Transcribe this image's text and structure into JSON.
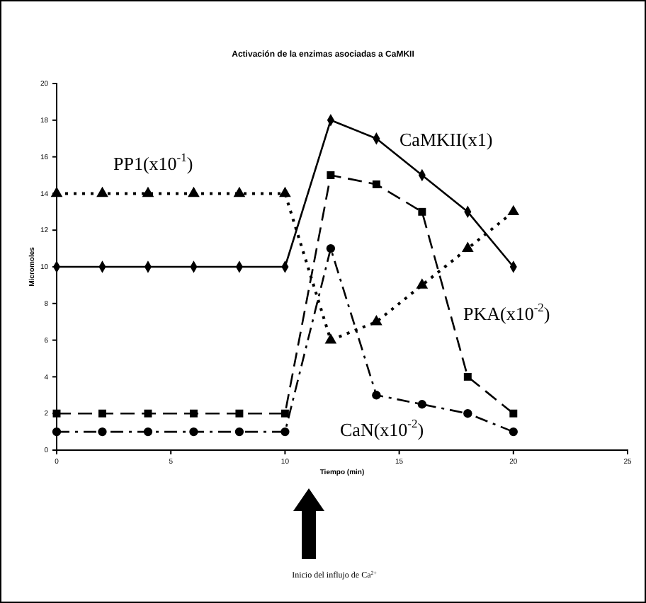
{
  "chart_data": {
    "type": "line",
    "title": "Activación de la enzimas asociadas a CaMKII",
    "xlabel": "Tiempo (min)",
    "ylabel": "Micromoles",
    "x": [
      0,
      2,
      4,
      6,
      8,
      10,
      12,
      14,
      16,
      18,
      20
    ],
    "xlim": [
      0,
      25
    ],
    "xticks": [
      0,
      5,
      10,
      15,
      20,
      25
    ],
    "ylim": [
      0,
      20
    ],
    "yticks": [
      0,
      2,
      4,
      6,
      8,
      10,
      12,
      14,
      16,
      18,
      20
    ],
    "grid": false,
    "series": [
      {
        "color": "#000000",
        "marker": "diamond",
        "line_style": "solid",
        "values": [
          10,
          10,
          10,
          10,
          10,
          10,
          18,
          17,
          15,
          13,
          10
        ]
      },
      {
        "color": "#000000",
        "marker": "triangle",
        "line_style": "dotted",
        "values": [
          14,
          14,
          14,
          14,
          14,
          14,
          6,
          7,
          9,
          11,
          13
        ]
      },
      {
        "color": "#000000",
        "marker": "square",
        "line_style": "dashed",
        "values": [
          2,
          2,
          2,
          2,
          2,
          2,
          15,
          14.5,
          13,
          4,
          2
        ]
      },
      {
        "color": "#000000",
        "marker": "circle",
        "line_style": "dashdot",
        "values": [
          1,
          1,
          1,
          1,
          1,
          1,
          11,
          3,
          2.5,
          2,
          1
        ]
      }
    ],
    "annotations": [
      "CaMKII(x1)",
      "PP1(x10$^{-1}$)",
      "PKA(x10$^{-2}$)",
      "CaN(x10$^{-2}$)",
      "Inicio del influjo de Ca$^{2+}$"
    ]
  }
}
